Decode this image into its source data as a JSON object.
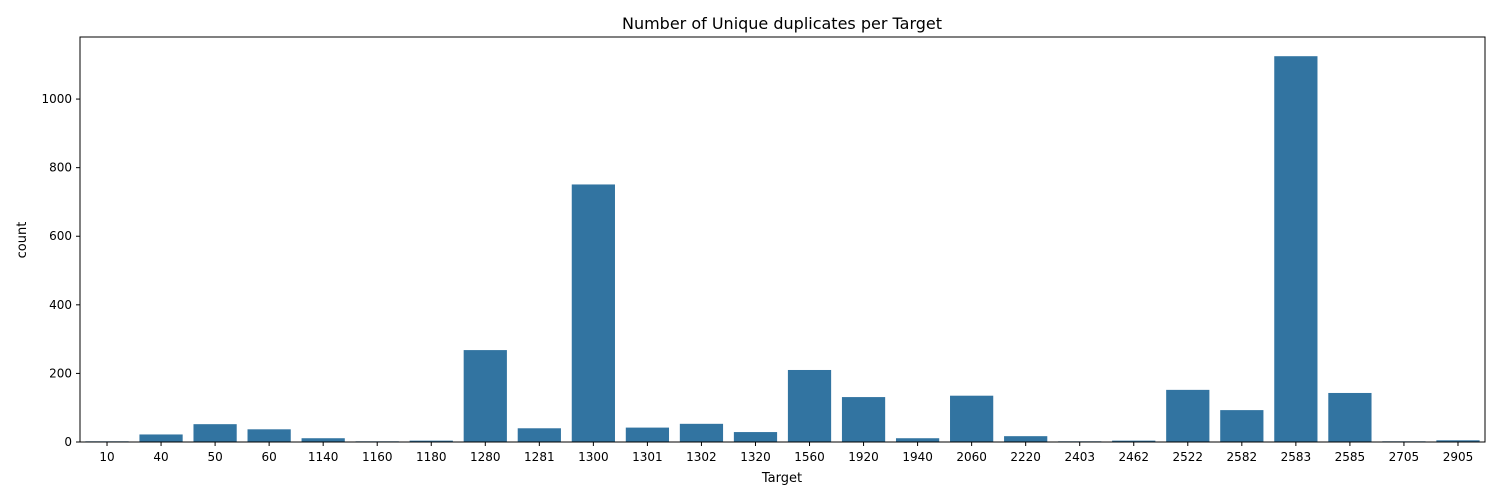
{
  "chart_data": {
    "type": "bar",
    "title": "Number of Unique duplicates per Target",
    "xlabel": "Target",
    "ylabel": "count",
    "categories": [
      "10",
      "40",
      "50",
      "60",
      "1140",
      "1160",
      "1180",
      "1280",
      "1281",
      "1300",
      "1301",
      "1302",
      "1320",
      "1560",
      "1920",
      "1940",
      "2060",
      "2220",
      "2403",
      "2462",
      "2522",
      "2582",
      "2583",
      "2585",
      "2705",
      "2905"
    ],
    "values": [
      2,
      22,
      52,
      37,
      11,
      2,
      4,
      268,
      40,
      751,
      42,
      53,
      29,
      210,
      131,
      11,
      135,
      17,
      2,
      4,
      152,
      93,
      1125,
      143,
      2,
      5
    ],
    "yticks": [
      0,
      200,
      400,
      600,
      800,
      1000
    ],
    "ylim": [
      0,
      1181
    ],
    "grid": false,
    "legend": "none",
    "bar_color": "#3274a1"
  }
}
